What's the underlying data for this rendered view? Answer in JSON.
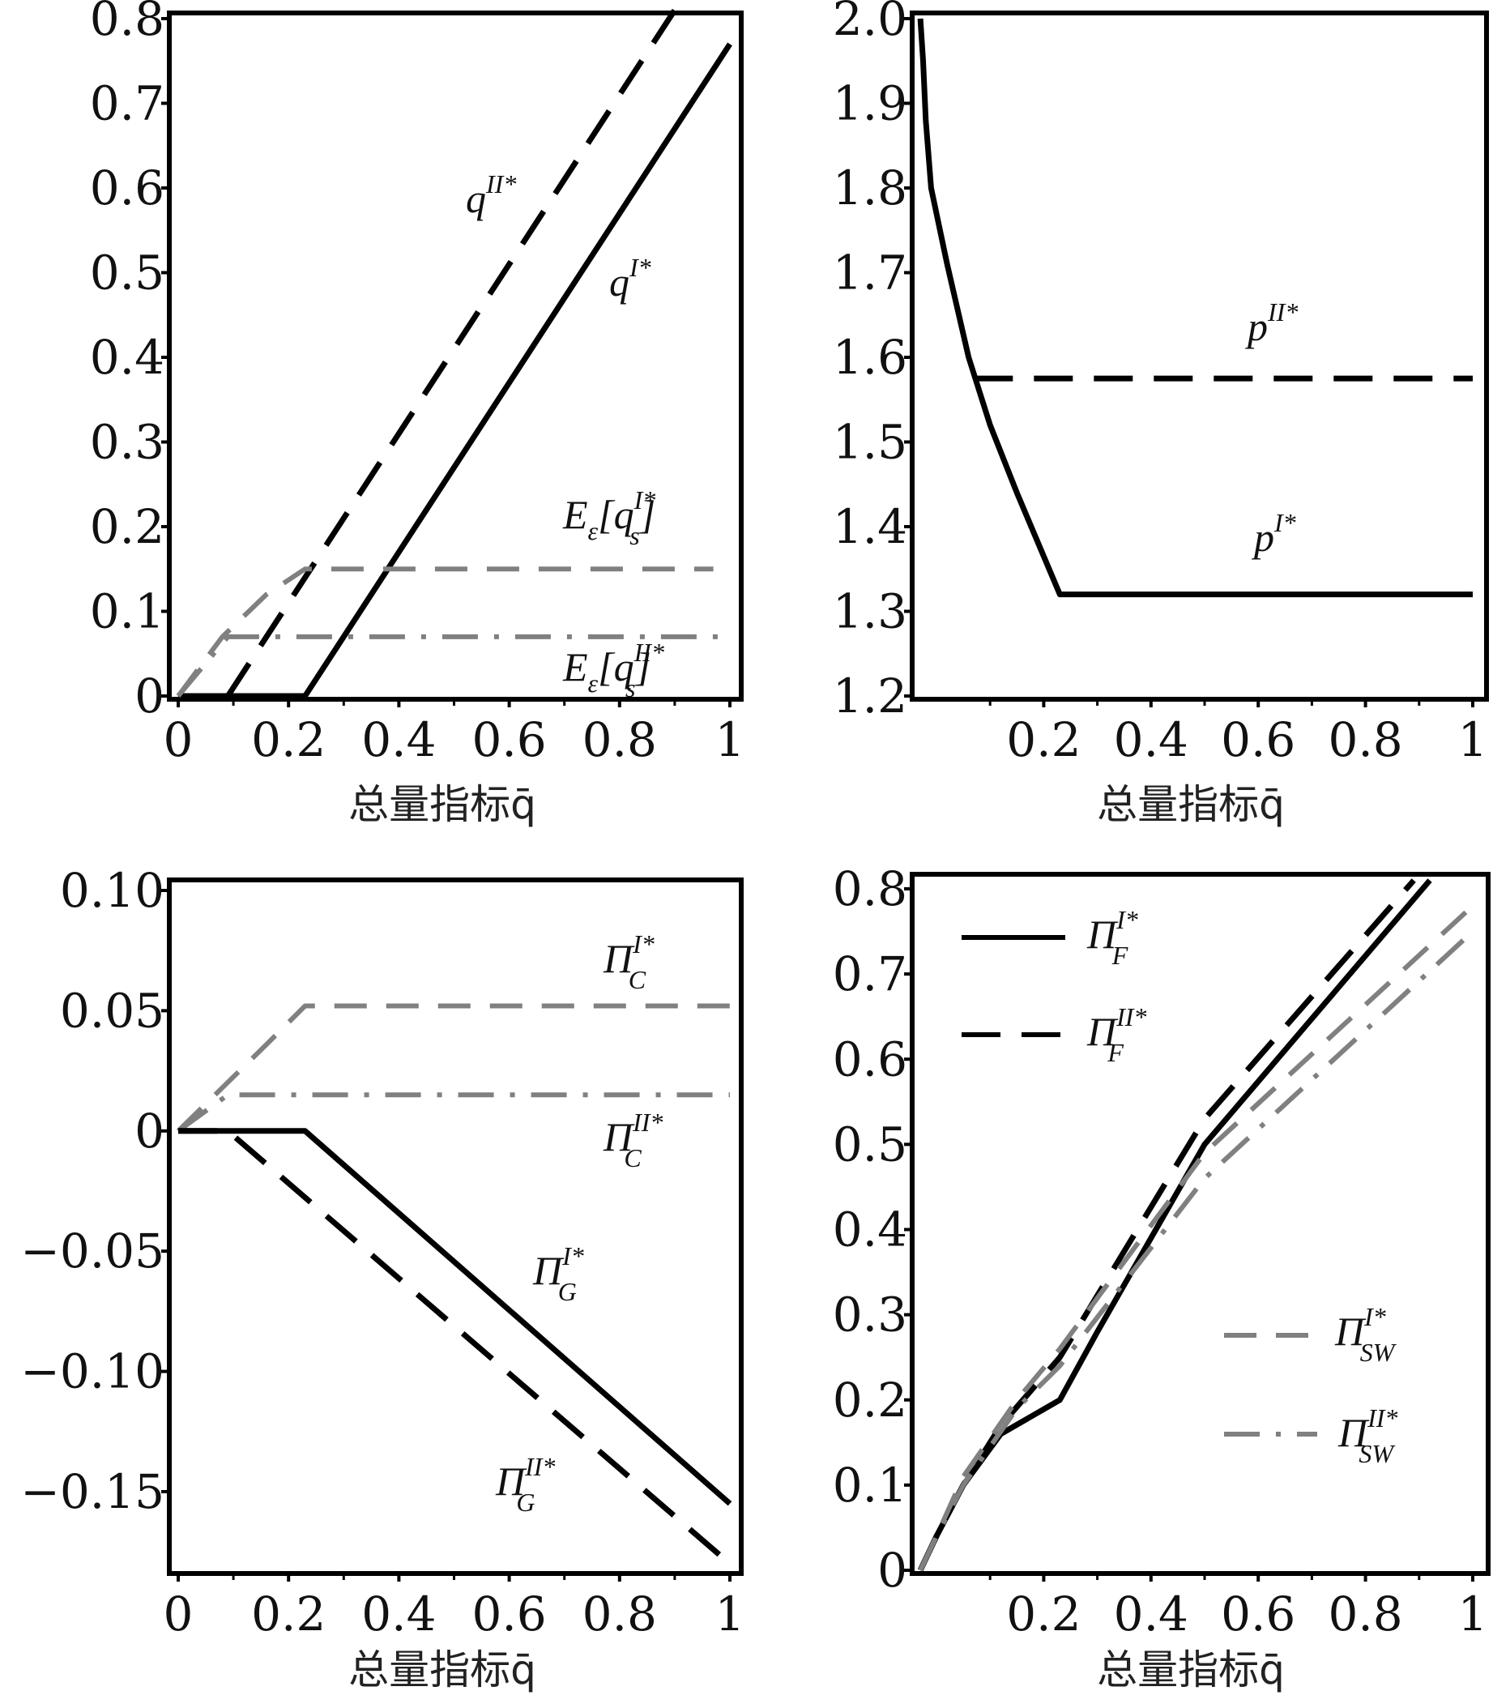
{
  "colors": {
    "black": "#000000",
    "gray": "#808080"
  },
  "chart_data": [
    {
      "type": "line",
      "id": "quantity",
      "xlabel": "总量指标q̄",
      "xlim": [
        0,
        1
      ],
      "ylim": [
        0,
        0.8
      ],
      "xticks": [
        "0",
        "0.2",
        "0.4",
        "0.6",
        "0.8",
        "1"
      ],
      "xtick_values": [
        0,
        0.2,
        0.4,
        0.6,
        0.8,
        1
      ],
      "yticks": [
        "0",
        "0.1",
        "0.2",
        "0.3",
        "0.4",
        "0.5",
        "0.6",
        "0.7",
        "0.8"
      ],
      "ytick_values": [
        0,
        0.1,
        0.2,
        0.3,
        0.4,
        0.5,
        0.6,
        0.7,
        0.8
      ],
      "series": [
        {
          "name": "q^II*",
          "style": "longdash",
          "color": "black",
          "label": [
            {
              "t": "q"
            },
            {
              "t": "II*",
              "s": "sup"
            }
          ],
          "x": [
            0.09,
            0.91
          ],
          "y": [
            0,
            0.82
          ]
        },
        {
          "name": "q^I*",
          "style": "solid",
          "color": "black",
          "label": [
            {
              "t": "q"
            },
            {
              "t": "I*",
              "s": "sup"
            }
          ],
          "x": [
            0,
            0.23,
            1
          ],
          "y": [
            0,
            0,
            0.77
          ]
        },
        {
          "name": "E_ε[q_s^I*]",
          "style": "dash",
          "color": "gray",
          "label": [
            {
              "t": "E"
            },
            {
              "t": "ε",
              "s": "sub"
            },
            {
              "t": "[q"
            },
            {
              "t": "I*",
              "s": "sup"
            },
            {
              "t": "s",
              "s": "sub2"
            },
            {
              "t": "]"
            }
          ],
          "x": [
            0,
            0.08,
            0.16,
            0.23,
            0.97
          ],
          "y": [
            0,
            0.07,
            0.12,
            0.15,
            0.15
          ]
        },
        {
          "name": "E_ε[q_s^II*]",
          "style": "dashdot",
          "color": "gray",
          "label": [
            {
              "t": "E"
            },
            {
              "t": "ε",
              "s": "sub"
            },
            {
              "t": "[q"
            },
            {
              "t": "II*",
              "s": "sup"
            },
            {
              "t": "s",
              "s": "sub2"
            },
            {
              "t": "]"
            }
          ],
          "x": [
            0,
            0.09,
            1
          ],
          "y": [
            0,
            0.07,
            0.07
          ]
        }
      ]
    },
    {
      "type": "line",
      "id": "price",
      "xlabel": "总量指标q̄",
      "xlim": [
        0,
        1
      ],
      "ylim": [
        1.2,
        2.0
      ],
      "xticks": [
        "0.2",
        "0.4",
        "0.6",
        "0.8",
        "1"
      ],
      "xtick_values": [
        0.2,
        0.4,
        0.6,
        0.8,
        1
      ],
      "yticks": [
        "1.2",
        "1.3",
        "1.4",
        "1.5",
        "1.6",
        "1.7",
        "1.8",
        "1.9",
        "2.0"
      ],
      "ytick_values": [
        1.2,
        1.3,
        1.4,
        1.5,
        1.6,
        1.7,
        1.8,
        1.9,
        2.0
      ],
      "series": [
        {
          "name": "p^II*",
          "style": "longdash",
          "color": "black",
          "label": [
            {
              "t": "p"
            },
            {
              "t": "II*",
              "s": "sup"
            }
          ],
          "x": [
            0.07,
            1
          ],
          "y": [
            1.575,
            1.575
          ]
        },
        {
          "name": "p^I*",
          "style": "solid",
          "color": "black",
          "label": [
            {
              "t": "p"
            },
            {
              "t": "I*",
              "s": "sup"
            }
          ],
          "x": [
            -0.03,
            -0.025,
            -0.02,
            -0.01,
            0.02,
            0.06,
            0.1,
            0.15,
            0.23,
            1
          ],
          "y": [
            2.0,
            1.95,
            1.88,
            1.8,
            1.71,
            1.6,
            1.52,
            1.44,
            1.32,
            1.32
          ]
        }
      ]
    },
    {
      "type": "line",
      "id": "profit-consumer-government",
      "xlabel": "总量指标q̄",
      "xlim": [
        0,
        1
      ],
      "ylim": [
        -0.184,
        0.1
      ],
      "xticks": [
        "0",
        "0.2",
        "0.4",
        "0.6",
        "0.8",
        "1"
      ],
      "xtick_values": [
        0,
        0.2,
        0.4,
        0.6,
        0.8,
        1
      ],
      "yticks": [
        "0.10",
        "0.05",
        "0",
        "−0.05",
        "−0.10",
        "−0.15"
      ],
      "ytick_values": [
        0.1,
        0.05,
        0,
        -0.05,
        -0.1,
        -0.15
      ],
      "series": [
        {
          "name": "Π_C^I*",
          "style": "dash",
          "color": "gray",
          "label": [
            {
              "t": "Π"
            },
            {
              "t": "I*",
              "s": "sup"
            },
            {
              "t": "C",
              "s": "sub2"
            }
          ],
          "x": [
            0,
            0.08,
            0.16,
            0.23,
            1
          ],
          "y": [
            0,
            0.018,
            0.036,
            0.052,
            0.052
          ]
        },
        {
          "name": "Π_C^II*",
          "style": "dashdot",
          "color": "gray",
          "label": [
            {
              "t": "Π"
            },
            {
              "t": "II*",
              "s": "sup"
            },
            {
              "t": "C",
              "s": "sub2"
            }
          ],
          "x": [
            0,
            0.09,
            1
          ],
          "y": [
            0,
            0.015,
            0.015
          ]
        },
        {
          "name": "Π_G^I*",
          "style": "solid",
          "color": "black",
          "label": [
            {
              "t": "Π"
            },
            {
              "t": "I*",
              "s": "sup"
            },
            {
              "t": "G",
              "s": "sub2"
            }
          ],
          "x": [
            0,
            0.23,
            1
          ],
          "y": [
            0,
            0,
            -0.155
          ]
        },
        {
          "name": "Π_G^II*",
          "style": "longdash",
          "color": "black",
          "label": [
            {
              "t": "Π"
            },
            {
              "t": "II*",
              "s": "sup"
            },
            {
              "t": "G",
              "s": "sub2"
            }
          ],
          "x": [
            0,
            0.09,
            1
          ],
          "y": [
            0,
            0,
            -0.18
          ]
        }
      ]
    },
    {
      "type": "line",
      "id": "profit-firm-welfare",
      "xlabel": "总量指标q̄",
      "xlim": [
        0,
        1
      ],
      "ylim": [
        0,
        0.8
      ],
      "xticks": [
        "0.2",
        "0.4",
        "0.6",
        "0.8",
        "1"
      ],
      "xtick_values": [
        0.2,
        0.4,
        0.6,
        0.8,
        1
      ],
      "yticks": [
        "0",
        "0.1",
        "0.2",
        "0.3",
        "0.4",
        "0.5",
        "0.6",
        "0.7",
        "0.8"
      ],
      "ytick_values": [
        0,
        0.1,
        0.2,
        0.3,
        0.4,
        0.5,
        0.6,
        0.7,
        0.8
      ],
      "legend": "top-left / bottom-right",
      "series": [
        {
          "name": "Π_F^I*",
          "style": "solid",
          "color": "black",
          "label": [
            {
              "t": "Π"
            },
            {
              "t": "I*",
              "s": "sup"
            },
            {
              "t": "F",
              "s": "sub2"
            }
          ],
          "x": [
            -0.03,
            0.0,
            0.05,
            0.12,
            0.23,
            0.3,
            0.5,
            0.92
          ],
          "y": [
            0,
            0.04,
            0.1,
            0.16,
            0.2,
            0.28,
            0.5,
            0.81
          ]
        },
        {
          "name": "Π_F^II*",
          "style": "longdash",
          "color": "black",
          "label": [
            {
              "t": "Π"
            },
            {
              "t": "II*",
              "s": "sup"
            },
            {
              "t": "F",
              "s": "sub2"
            }
          ],
          "x": [
            -0.03,
            0.0,
            0.05,
            0.12,
            0.23,
            0.5,
            0.89
          ],
          "y": [
            0,
            0.04,
            0.1,
            0.17,
            0.25,
            0.53,
            0.81
          ]
        },
        {
          "name": "Π_SW^I*",
          "style": "dash",
          "color": "gray",
          "label": [
            {
              "t": "Π"
            },
            {
              "t": "I*",
              "s": "sup"
            },
            {
              "t": "SW",
              "s": "sub2"
            }
          ],
          "x": [
            -0.03,
            0.0,
            0.05,
            0.15,
            0.23,
            0.5,
            1
          ],
          "y": [
            0,
            0.04,
            0.11,
            0.2,
            0.26,
            0.49,
            0.78
          ]
        },
        {
          "name": "Π_SW^II*",
          "style": "dashdot",
          "color": "gray",
          "label": [
            {
              "t": "Π"
            },
            {
              "t": "II*",
              "s": "sup"
            },
            {
              "t": "SW",
              "s": "sub2"
            }
          ],
          "x": [
            -0.03,
            0.0,
            0.05,
            0.15,
            0.23,
            0.5,
            1
          ],
          "y": [
            0,
            0.04,
            0.1,
            0.19,
            0.24,
            0.46,
            0.75
          ]
        }
      ]
    }
  ]
}
